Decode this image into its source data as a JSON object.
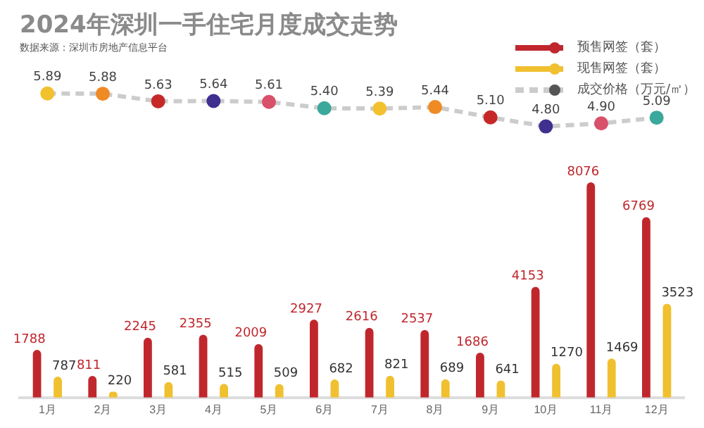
{
  "chart_data": [
    {
      "type": "line",
      "title": "2024年深圳一手住宅月度成交走势",
      "annotations": [
        "数据来源：深圳市房地产信息平台"
      ],
      "categories": [
        null,
        null,
        null,
        null,
        null,
        null,
        null,
        null,
        null,
        null,
        null,
        null
      ],
      "series": [
        {
          "name": "成交价格（万元/㎡）",
          "color": "#cccccc",
          "colors": [
            "#f2c12e",
            "#f08a24",
            "#c62828",
            "#3f2f8f",
            "#d9506a",
            "#3aa89a",
            "#f2c12e",
            "#f08a24",
            "#c62828",
            "#3f2f8f",
            "#d9506a",
            "#3aa89a"
          ],
          "values": [
            5.89,
            5.88,
            5.63,
            5.64,
            5.61,
            5.4,
            5.39,
            5.44,
            5.1,
            4.8,
            4.9,
            5.09
          ],
          "value_labels": [
            "5.89",
            "5.88",
            "5.63",
            "5.64",
            "5.61",
            "5.40",
            "5.39",
            "5.44",
            "5.10",
            "4.80",
            "4.90",
            "5.09"
          ]
        }
      ],
      "line_style": "dashed",
      "marker": "circle",
      "tick_labels": false,
      "grid": false,
      "legend": "top right"
    },
    {
      "type": "bar",
      "categories": [
        "1月",
        "2月",
        "3月",
        "4月",
        "5月",
        "6月",
        "7月",
        "8月",
        "9月",
        "10月",
        "11月",
        "12月"
      ],
      "series": [
        {
          "name": "预售网签（套）",
          "color": "#c0272d",
          "values": [
            1788,
            811,
            2245,
            2355,
            2009,
            2927,
            2616,
            2537,
            1686,
            4153,
            8076,
            6769
          ]
        },
        {
          "name": "现售网签（套）",
          "color": "#f0c030",
          "values": [
            787,
            220,
            581,
            515,
            509,
            682,
            821,
            689,
            641,
            1270,
            1469,
            3523
          ]
        }
      ],
      "data_labels": true,
      "tick_labels": "x",
      "grid": false,
      "legend": "top right"
    }
  ]
}
